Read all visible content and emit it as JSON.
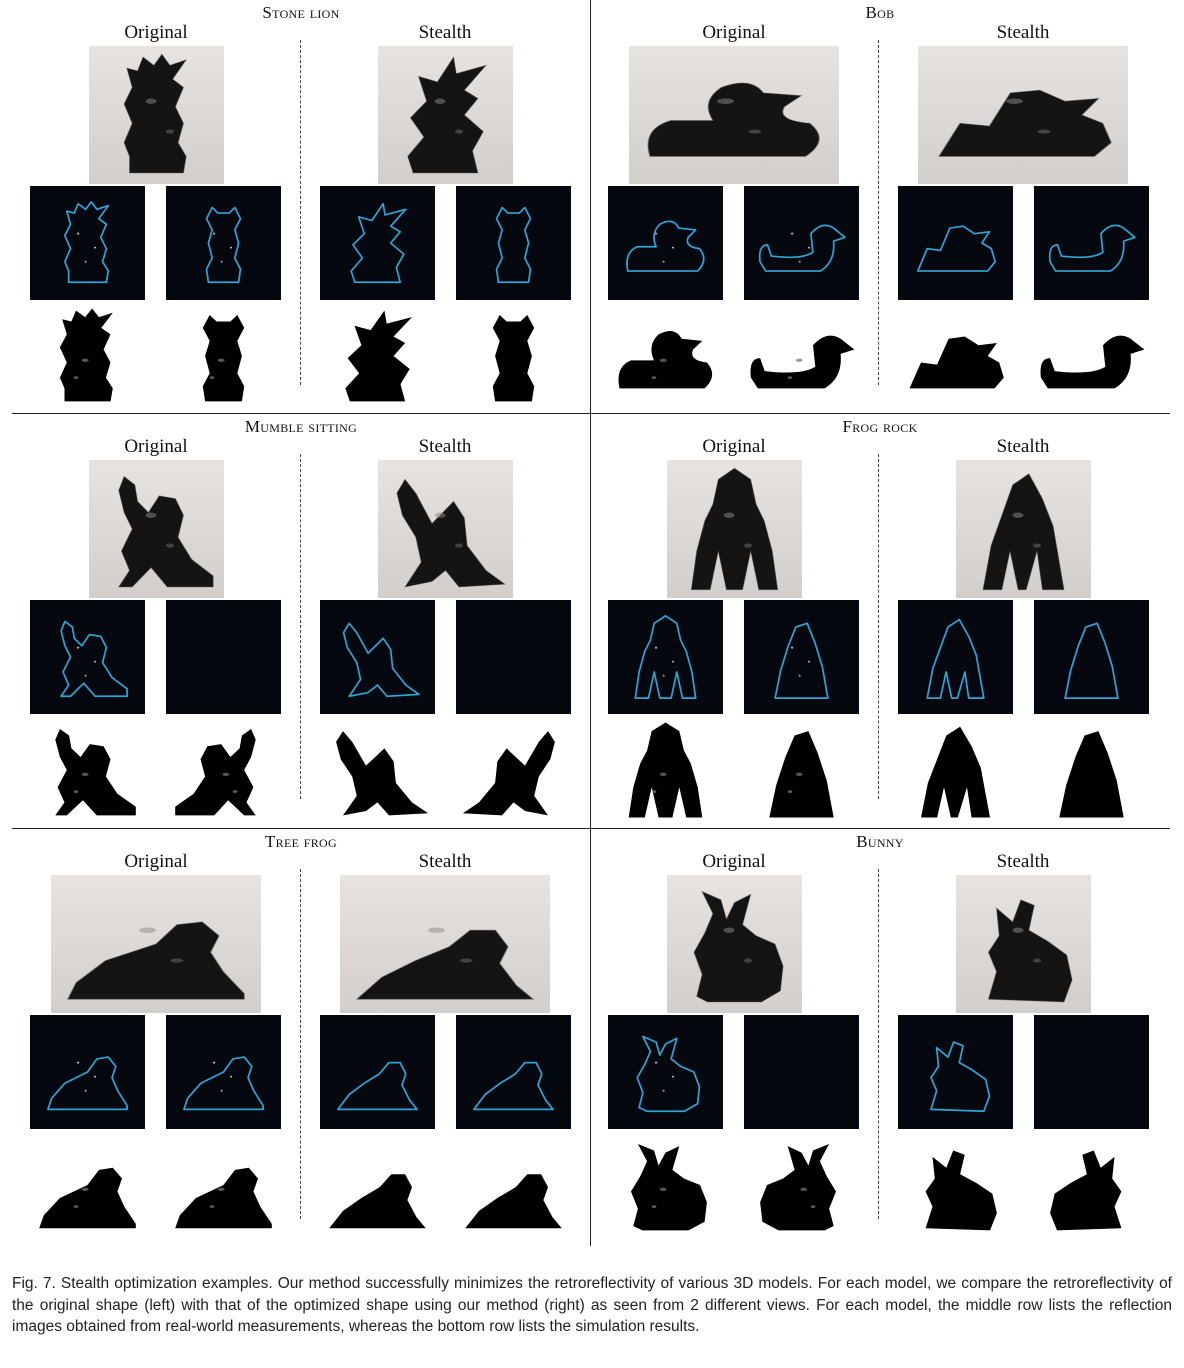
{
  "figure": {
    "panels": [
      {
        "title": "Stone lion",
        "original_label": "Original",
        "stealth_label": "Stealth"
      },
      {
        "title": "Bob",
        "original_label": "Original",
        "stealth_label": "Stealth"
      },
      {
        "title": "Mumble sitting",
        "original_label": "Original",
        "stealth_label": "Stealth"
      },
      {
        "title": "Frog rock",
        "original_label": "Original",
        "stealth_label": "Stealth"
      },
      {
        "title": "Tree frog",
        "original_label": "Original",
        "stealth_label": "Stealth"
      },
      {
        "title": "Bunny",
        "original_label": "Original",
        "stealth_label": "Stealth"
      }
    ],
    "colors": {
      "photo_background": "#dedbd8",
      "object": "#141414",
      "reflection_background": "#05080f",
      "outline": "#2fa4d6",
      "simulation_background": "#ffffff"
    }
  },
  "caption": "Fig. 7.  Stealth optimization examples. Our method successfully minimizes the retroreflectivity of various 3D models. For each model, we compare the retroreflectivity of the original shape (left) with that of the optimized shape using our method (right) as seen from 2 different views. For each model, the middle row lists the reflection images obtained from real-world measurements, whereas the bottom row lists the simulation results."
}
